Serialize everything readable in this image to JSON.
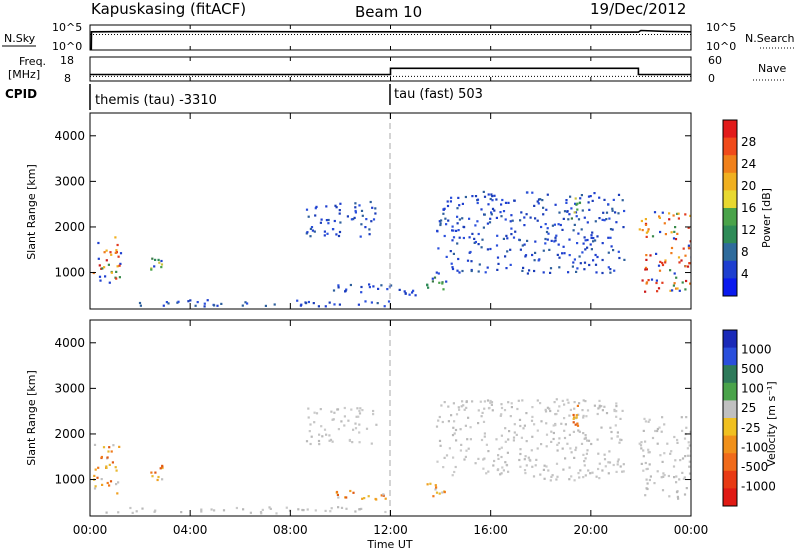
{
  "header": {
    "station": "Kapuskasing (fitACF)",
    "beam": "Beam 10",
    "date": "19/Dec/2012"
  },
  "chart_data": [
    {
      "type": "line",
      "panel": "nsky-nsearch",
      "left_label": "N.Sky",
      "right_label": "N.Search",
      "left_ticks": [
        "10^5",
        "10^0"
      ],
      "right_ticks": [
        "10^5",
        "10^0"
      ],
      "x": [
        0,
        0.05,
        0.06,
        3,
        6,
        9,
        12,
        15,
        18,
        21,
        21.9,
        22,
        23,
        24
      ],
      "y_nsky_log": [
        0,
        0,
        3.9,
        4.0,
        3.95,
        3.9,
        3.9,
        3.85,
        3.85,
        3.85,
        3.85,
        4.2,
        4.0,
        3.9
      ],
      "y_nsearch_log": [
        3.3,
        3.3,
        3.3,
        3.3,
        3.3,
        3.3,
        3.3,
        3.3,
        3.3,
        3.3,
        3.3,
        3.3,
        3.3,
        3.3
      ]
    },
    {
      "type": "line",
      "panel": "freq-nave",
      "left_label_top": "Freq.",
      "left_label_bottom": "[MHz]",
      "right_label": "Nave",
      "left_ticks": [
        "18",
        "8"
      ],
      "right_ticks": [
        "60",
        "0"
      ],
      "ylim_freq": [
        8,
        18
      ],
      "ylim_nave": [
        0,
        60
      ],
      "freq_x": [
        0,
        12,
        12,
        21.9,
        21.9,
        24
      ],
      "freq_y": [
        10.5,
        10.5,
        13.3,
        13.3,
        10.5,
        10.5
      ],
      "nave_level": 10
    },
    {
      "type": "table",
      "panel": "cpid",
      "label": "CPID",
      "segments": [
        {
          "start": 0,
          "text": "themis (tau) -3310"
        },
        {
          "start": 12,
          "text": "tau (fast) 503"
        }
      ]
    },
    {
      "type": "heatmap",
      "panel": "power",
      "ylabel": "Slant Range [km]",
      "yticks": [
        1000,
        2000,
        3000,
        4000
      ],
      "ylim": [
        200,
        4500
      ],
      "xlim": [
        0,
        24
      ],
      "colorbar_label": "Power [dB]",
      "colorbar_ticks": [
        "4",
        "8",
        "12",
        "16",
        "20",
        "24",
        "28"
      ],
      "clusters": [
        {
          "t": [
            0.1,
            1.2
          ],
          "r": [
            700,
            1800
          ],
          "level": "high"
        },
        {
          "t": [
            2.4,
            2.9
          ],
          "r": [
            1000,
            1350
          ],
          "level": "mid"
        },
        {
          "t": [
            0.6,
            12
          ],
          "r": [
            280,
            420
          ],
          "level": "low"
        },
        {
          "t": [
            9.6,
            12
          ],
          "r": [
            580,
            780
          ],
          "level": "low"
        },
        {
          "t": [
            8.6,
            11.4
          ],
          "r": [
            1800,
            2600
          ],
          "level": "low"
        },
        {
          "t": [
            12.3,
            13.0
          ],
          "r": [
            500,
            650
          ],
          "level": "low"
        },
        {
          "t": [
            13.4,
            14.2
          ],
          "r": [
            650,
            950
          ],
          "level": "mid"
        },
        {
          "t": [
            13.8,
            21.3
          ],
          "r": [
            1000,
            2800
          ],
          "level": "low"
        },
        {
          "t": [
            19.2,
            19.6
          ],
          "r": [
            2200,
            2700
          ],
          "level": "mid"
        },
        {
          "t": [
            21.9,
            24
          ],
          "r": [
            600,
            2400
          ],
          "level": "high"
        }
      ]
    },
    {
      "type": "heatmap",
      "panel": "velocity",
      "ylabel": "Slant Range [km]",
      "yticks": [
        1000,
        2000,
        3000,
        4000
      ],
      "ylim": [
        200,
        4500
      ],
      "xlim": [
        0,
        24
      ],
      "colorbar_label": "Velocity  [m s⁻¹]",
      "colorbar_ticks": [
        "1000",
        "500",
        "100",
        "25",
        "-25",
        "-100",
        "-500",
        "-1000"
      ],
      "xticks": [
        "00:00",
        "04:00",
        "08:00",
        "12:00",
        "16:00",
        "20:00",
        "00:00"
      ],
      "xlabel": "Time UT",
      "clusters": [
        {
          "t": [
            0.1,
            1.2
          ],
          "r": [
            700,
            1800
          ],
          "level": "neg"
        },
        {
          "t": [
            2.4,
            2.9
          ],
          "r": [
            1000,
            1350
          ],
          "level": "neg"
        },
        {
          "t": [
            0.6,
            12
          ],
          "r": [
            280,
            420
          ],
          "level": "gs"
        },
        {
          "t": [
            9.6,
            12
          ],
          "r": [
            580,
            780
          ],
          "level": "neg"
        },
        {
          "t": [
            8.6,
            11.4
          ],
          "r": [
            1800,
            2600
          ],
          "level": "gs"
        },
        {
          "t": [
            13.4,
            14.2
          ],
          "r": [
            650,
            950
          ],
          "level": "neg"
        },
        {
          "t": [
            13.8,
            21.3
          ],
          "r": [
            1000,
            2800
          ],
          "level": "gs"
        },
        {
          "t": [
            19.2,
            19.6
          ],
          "r": [
            2200,
            2700
          ],
          "level": "neg"
        },
        {
          "t": [
            21.9,
            24
          ],
          "r": [
            600,
            2400
          ],
          "level": "gs"
        }
      ]
    }
  ]
}
